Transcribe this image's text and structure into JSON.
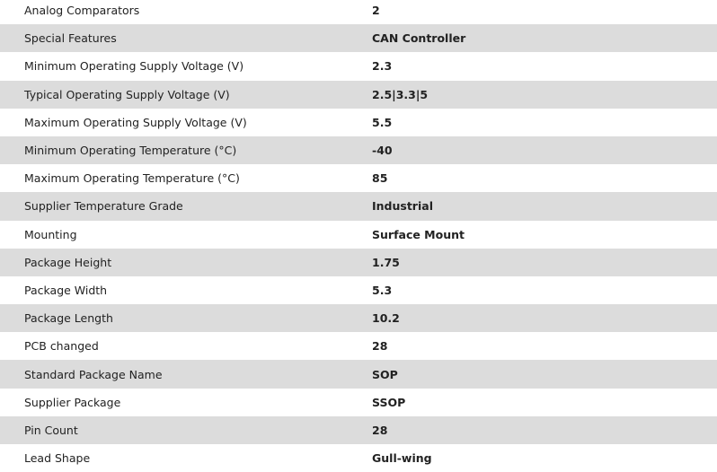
{
  "rows": [
    {
      "label": "Analog Comparators",
      "value": "2"
    },
    {
      "label": "Special Features",
      "value": "CAN Controller"
    },
    {
      "label": "Minimum Operating Supply Voltage (V)",
      "value": "2.3"
    },
    {
      "label": "Typical Operating Supply Voltage (V)",
      "value": "2.5|3.3|5"
    },
    {
      "label": "Maximum Operating Supply Voltage (V)",
      "value": "5.5"
    },
    {
      "label": "Minimum Operating Temperature (°C)",
      "value": "-40"
    },
    {
      "label": "Maximum Operating Temperature (°C)",
      "value": "85"
    },
    {
      "label": "Supplier Temperature Grade",
      "value": "Industrial"
    },
    {
      "label": "Mounting",
      "value": "Surface Mount"
    },
    {
      "label": "Package Height",
      "value": "1.75"
    },
    {
      "label": "Package Width",
      "value": "5.3"
    },
    {
      "label": "Package Length",
      "value": "10.2"
    },
    {
      "label": "PCB changed",
      "value": "28"
    },
    {
      "label": "Standard Package Name",
      "value": "SOP"
    },
    {
      "label": "Supplier Package",
      "value": "SSOP"
    },
    {
      "label": "Pin Count",
      "value": "28"
    },
    {
      "label": "Lead Shape",
      "value": "Gull-wing"
    }
  ],
  "colors": {
    "stripe": "#dcdcdc",
    "text": "#222222"
  }
}
